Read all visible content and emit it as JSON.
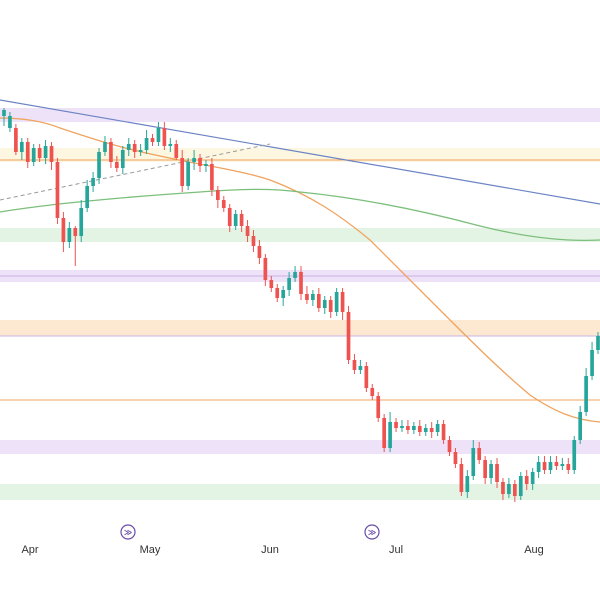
{
  "chart_data": {
    "type": "candlestick",
    "title": "",
    "xlabel": "",
    "ylabel": "",
    "x_ticks": [
      "Apr",
      "May",
      "Jun",
      "Jul",
      "Aug"
    ],
    "colors": {
      "up": "#26a69a",
      "down": "#ef5350",
      "ma_short": "#f0a35e",
      "ma_long": "#7bbf7b",
      "trendline": "#6b84c4",
      "dashed_trend": "#999999",
      "zone_purple": "#ede2f7",
      "zone_green": "#e4f4e4",
      "zone_orange": "#fde8d2",
      "zone_yellow": "#fdf6e0",
      "level_line": "#f0a35e",
      "marker": "#6a4ca8"
    },
    "markers": [
      {
        "symbol": "≫",
        "near": "May"
      },
      {
        "symbol": "≫",
        "near": "Jul"
      }
    ],
    "candles": [
      [
        116,
        110,
        126,
        108
      ],
      [
        128,
        116,
        132,
        112
      ],
      [
        128,
        152,
        155,
        124
      ],
      [
        152,
        142,
        160,
        138
      ],
      [
        142,
        162,
        168,
        138
      ],
      [
        162,
        148,
        166,
        144
      ],
      [
        148,
        158,
        162,
        144
      ],
      [
        158,
        146,
        164,
        140
      ],
      [
        146,
        162,
        170,
        142
      ],
      [
        162,
        218,
        224,
        158
      ],
      [
        218,
        242,
        252,
        212
      ],
      [
        242,
        228,
        248,
        222
      ],
      [
        228,
        236,
        266,
        226
      ],
      [
        236,
        208,
        242,
        200
      ],
      [
        208,
        186,
        212,
        180
      ],
      [
        186,
        178,
        192,
        172
      ],
      [
        178,
        152,
        184,
        148
      ],
      [
        152,
        142,
        156,
        136
      ],
      [
        142,
        162,
        168,
        138
      ],
      [
        162,
        168,
        172,
        156
      ],
      [
        168,
        150,
        174,
        146
      ],
      [
        150,
        144,
        156,
        138
      ],
      [
        144,
        152,
        158,
        140
      ],
      [
        152,
        150,
        156,
        144
      ],
      [
        150,
        138,
        154,
        130
      ],
      [
        138,
        142,
        146,
        134
      ],
      [
        142,
        128,
        146,
        122
      ],
      [
        128,
        146,
        150,
        122
      ],
      [
        146,
        144,
        152,
        138
      ],
      [
        144,
        158,
        160,
        140
      ],
      [
        158,
        186,
        192,
        150
      ],
      [
        186,
        162,
        190,
        158
      ],
      [
        162,
        158,
        170,
        150
      ],
      [
        158,
        166,
        172,
        154
      ],
      [
        166,
        164,
        172,
        160
      ],
      [
        164,
        190,
        196,
        158
      ],
      [
        190,
        200,
        208,
        186
      ],
      [
        200,
        208,
        212,
        196
      ],
      [
        208,
        226,
        232,
        204
      ],
      [
        226,
        214,
        230,
        210
      ],
      [
        214,
        226,
        232,
        210
      ],
      [
        226,
        236,
        242,
        220
      ],
      [
        236,
        246,
        252,
        230
      ],
      [
        246,
        258,
        264,
        240
      ],
      [
        258,
        280,
        286,
        254
      ],
      [
        280,
        288,
        292,
        276
      ],
      [
        288,
        298,
        302,
        284
      ],
      [
        298,
        290,
        306,
        286
      ],
      [
        290,
        278,
        296,
        272
      ],
      [
        278,
        272,
        282,
        266
      ],
      [
        272,
        294,
        300,
        266
      ],
      [
        294,
        300,
        304,
        286
      ],
      [
        300,
        294,
        306,
        290
      ],
      [
        294,
        308,
        312,
        288
      ],
      [
        308,
        300,
        314,
        296
      ],
      [
        300,
        312,
        318,
        296
      ],
      [
        312,
        292,
        316,
        288
      ],
      [
        292,
        312,
        320,
        288
      ],
      [
        312,
        360,
        364,
        306
      ],
      [
        360,
        370,
        374,
        354
      ],
      [
        370,
        366,
        374,
        360
      ],
      [
        366,
        388,
        392,
        362
      ],
      [
        388,
        396,
        400,
        384
      ],
      [
        396,
        418,
        422,
        392
      ],
      [
        418,
        448,
        452,
        414
      ],
      [
        448,
        422,
        452,
        412
      ],
      [
        422,
        428,
        432,
        418
      ],
      [
        428,
        426,
        432,
        420
      ],
      [
        426,
        430,
        434,
        420
      ],
      [
        430,
        426,
        434,
        422
      ],
      [
        426,
        432,
        436,
        420
      ],
      [
        432,
        428,
        436,
        424
      ],
      [
        428,
        432,
        438,
        422
      ],
      [
        432,
        424,
        436,
        420
      ],
      [
        424,
        440,
        444,
        420
      ],
      [
        440,
        452,
        456,
        436
      ],
      [
        452,
        464,
        468,
        448
      ],
      [
        464,
        492,
        496,
        458
      ],
      [
        492,
        476,
        498,
        470
      ],
      [
        476,
        448,
        480,
        440
      ],
      [
        448,
        460,
        464,
        442
      ],
      [
        460,
        478,
        484,
        456
      ],
      [
        478,
        464,
        484,
        460
      ],
      [
        464,
        482,
        488,
        458
      ],
      [
        482,
        494,
        500,
        478
      ],
      [
        494,
        484,
        498,
        478
      ],
      [
        484,
        496,
        502,
        480
      ],
      [
        496,
        476,
        500,
        472
      ],
      [
        476,
        484,
        490,
        470
      ],
      [
        484,
        472,
        490,
        468
      ],
      [
        472,
        462,
        478,
        456
      ],
      [
        462,
        470,
        474,
        456
      ],
      [
        470,
        462,
        474,
        456
      ],
      [
        462,
        466,
        470,
        456
      ],
      [
        466,
        464,
        470,
        458
      ],
      [
        464,
        470,
        474,
        458
      ],
      [
        470,
        440,
        474,
        436
      ],
      [
        440,
        412,
        444,
        406
      ],
      [
        412,
        376,
        416,
        368
      ],
      [
        376,
        350,
        380,
        342
      ],
      [
        350,
        336,
        354,
        332
      ]
    ]
  }
}
